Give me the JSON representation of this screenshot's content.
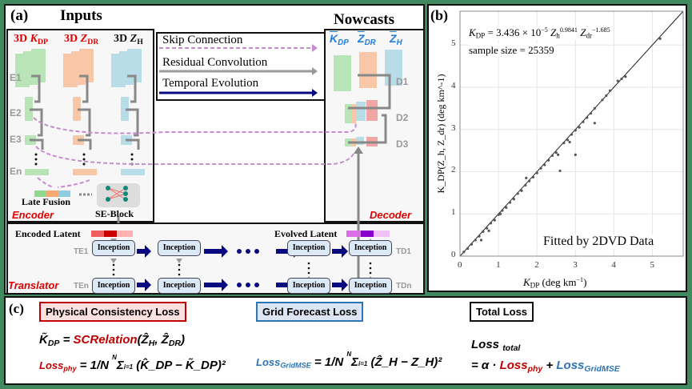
{
  "panel_a": {
    "label": "(a)",
    "inputs_title": "Inputs",
    "nowcasts_title": "Nowcasts",
    "inputs": [
      {
        "prefix": "3D",
        "var": "K",
        "sub": "DP",
        "color": "#e00000"
      },
      {
        "prefix": "3D",
        "var": "Z",
        "sub": "DR",
        "color": "#e00000"
      },
      {
        "prefix": "3D",
        "var": "Z",
        "sub": "H",
        "color": "#111111"
      }
    ],
    "outputs": [
      {
        "var": "K",
        "sub": "DP"
      },
      {
        "var": "Z",
        "sub": "DR"
      },
      {
        "var": "Z",
        "sub": "H"
      }
    ],
    "legend": {
      "skip": "Skip Connection",
      "residual": "Residual Convolution",
      "temporal": "Temporal Evolution"
    },
    "encoder": {
      "levels": [
        "E1",
        "E2",
        "E3",
        "En"
      ],
      "late_fusion": "Late Fusion",
      "se_block": "SE-Block",
      "title": "Encoder"
    },
    "decoder": {
      "levels": [
        "D1",
        "D2",
        "D3"
      ],
      "title": "Decoder"
    },
    "translator": {
      "title": "Translator",
      "encoded_latent": "Encoded Latent",
      "evolved_latent": "Evolved Latent",
      "block_label": "Inception",
      "left_labels": [
        "TE1",
        "TEn"
      ],
      "right_labels": [
        "TD1",
        "TDn"
      ]
    },
    "colors": {
      "skip": "#c88ad0",
      "residual": "#9a9a9a",
      "temporal": "#0a0a80",
      "green": "#8fd98f",
      "orange": "#f7a873",
      "blue": "#8fcde0"
    }
  },
  "chart_data": {
    "type": "scatter",
    "label": "(b)",
    "equation": {
      "lhs": "K",
      "lhs_sub": "DP",
      "text": "= 3.436 × 10",
      "exp1": "−5",
      "z1": "Z",
      "z1_sub": "h",
      "z1_exp": "0.9841",
      "z2": "Z",
      "z2_sub": "dr",
      "z2_exp": "−1.685"
    },
    "sample_size_text": "sample size = 25359",
    "annotation": "Fitted by 2DVD Data",
    "xlabel": "K_DP (deg km^-1)",
    "ylabel": "K_DP(Z_h, Z_dr) (deg km^-1)",
    "xlabel_parts": {
      "var": "K",
      "sub": "DP",
      "unit": "(deg km",
      "exp": "−1",
      "close": ")"
    },
    "ylabel_parts": {
      "var": "K",
      "sub": "DP",
      "args": "(Z",
      "a1": "h",
      "mid": ", Z",
      "a2": "dr",
      "unit": ") (deg km",
      "exp": "−1",
      "close": ")"
    },
    "xlim": [
      0,
      5.8
    ],
    "ylim": [
      0,
      5.8
    ],
    "xticks": [
      "0",
      "1",
      "2",
      "3",
      "4",
      "5"
    ],
    "yticks": [
      "0",
      "1",
      "2",
      "3",
      "4",
      "5"
    ],
    "grid": true,
    "fit_line": {
      "slope": 1,
      "intercept": 0
    },
    "points": [
      [
        0.1,
        0.1
      ],
      [
        0.2,
        0.18
      ],
      [
        0.3,
        0.28
      ],
      [
        0.4,
        0.38
      ],
      [
        0.5,
        0.47
      ],
      [
        0.55,
        0.38
      ],
      [
        0.6,
        0.58
      ],
      [
        0.7,
        0.66
      ],
      [
        0.75,
        0.6
      ],
      [
        0.8,
        0.78
      ],
      [
        0.9,
        0.85
      ],
      [
        1.0,
        0.98
      ],
      [
        1.05,
        1.0
      ],
      [
        1.1,
        1.08
      ],
      [
        1.2,
        1.15
      ],
      [
        1.3,
        1.27
      ],
      [
        1.4,
        1.35
      ],
      [
        1.5,
        1.48
      ],
      [
        1.6,
        1.55
      ],
      [
        1.7,
        1.68
      ],
      [
        1.72,
        1.85
      ],
      [
        1.8,
        1.78
      ],
      [
        1.9,
        1.87
      ],
      [
        2.0,
        1.97
      ],
      [
        2.1,
        2.08
      ],
      [
        2.2,
        2.16
      ],
      [
        2.3,
        2.27
      ],
      [
        2.4,
        2.38
      ],
      [
        2.5,
        2.45
      ],
      [
        2.55,
        2.4
      ],
      [
        2.6,
        2.02
      ],
      [
        2.7,
        2.68
      ],
      [
        2.8,
        2.75
      ],
      [
        2.85,
        2.7
      ],
      [
        2.9,
        2.88
      ],
      [
        3.0,
        2.4
      ],
      [
        3.0,
        2.98
      ],
      [
        3.1,
        3.05
      ],
      [
        3.2,
        3.18
      ],
      [
        3.3,
        3.28
      ],
      [
        3.4,
        3.38
      ],
      [
        3.5,
        3.5
      ],
      [
        3.5,
        3.15
      ],
      [
        3.7,
        3.7
      ],
      [
        3.8,
        3.8
      ],
      [
        3.9,
        3.92
      ],
      [
        4.1,
        4.15
      ],
      [
        4.2,
        4.2
      ],
      [
        4.3,
        4.25
      ],
      [
        5.2,
        5.15
      ]
    ]
  },
  "panel_c": {
    "label": "(c)",
    "phys_title": "Physical Consistency Loss",
    "grid_title": "Grid Forecast Loss",
    "total_title": "Total Loss",
    "eq1": "K̃_DP = SCRelation(Ẑ_H, Ẑ_DR)",
    "eq1_lhs": "K̃",
    "eq1_lhs_sub": "DP",
    "eq1_fn": "SCRelation",
    "eq1_args": "(Ẑ",
    "eq1_a1": "H",
    "eq1_comma": ", Ẑ",
    "eq1_a2": "DR",
    "eq1_close": ")",
    "loss_phy": "Loss",
    "loss_phy_sub": "phy",
    "sum_body_phy": "(K̂_DP − K̃_DP)²",
    "loss_grid": "Loss",
    "loss_grid_sub": "GridMSE",
    "sum_body_grid": "(Ẑ_H − Z_H)²",
    "frac": "1/N",
    "sum_top": "N",
    "sum_bottom": "i=1",
    "total_lhs": "Loss",
    "total_lhs_sub": "total",
    "total_rhs_prefix": "= α ·",
    "plus": "+",
    "colors": {
      "phys": "#c00000",
      "grid": "#2e75b6",
      "phys_box_bg": "#fde0e0",
      "grid_box_bg": "#dbe5f3"
    }
  }
}
